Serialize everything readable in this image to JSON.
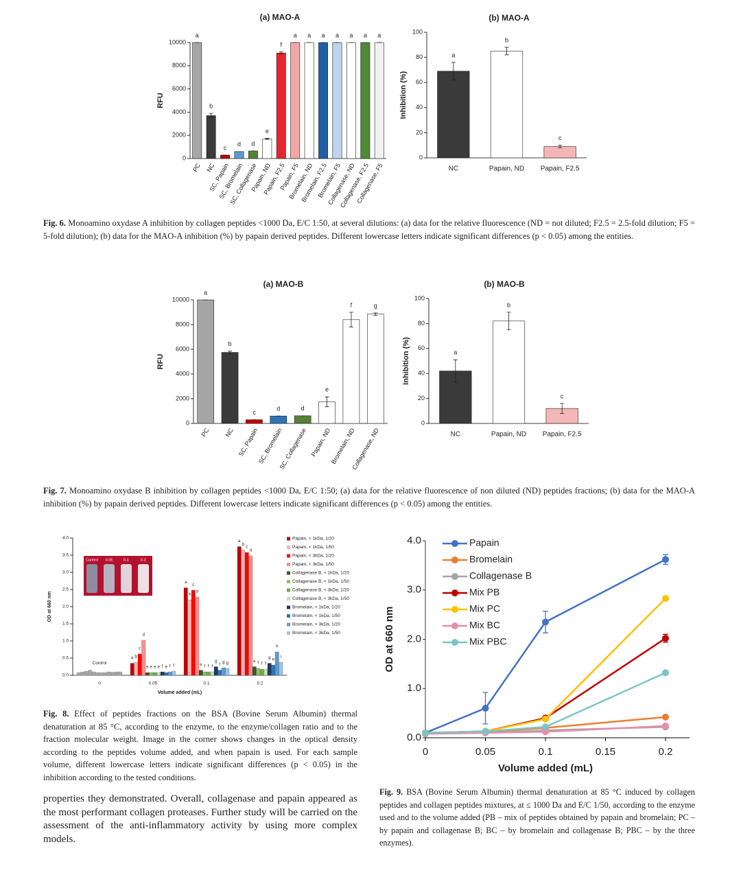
{
  "chart_data": [
    {
      "type": "bar",
      "title": "(a) MAO-A",
      "y_label": "RFU",
      "categories": [
        "PC",
        "NC",
        "SC, Papain",
        "SC, Bromelain",
        "SC, Collagenase",
        "Papain, ND",
        "Papain, F2.5",
        "Papain, F5",
        "Bromelain, ND",
        "Bromelain, F2.5",
        "Bromelain, F5",
        "Collagenase, ND",
        "Collagenase, F2.5",
        "Collagenase, F5"
      ],
      "values": [
        10000,
        3700,
        300,
        600,
        650,
        1700,
        9100,
        10000,
        10000,
        10000,
        10000,
        10000,
        10000,
        10000
      ],
      "errors": [
        0,
        200,
        0,
        0,
        0,
        50,
        100,
        0,
        0,
        0,
        0,
        0,
        0,
        0
      ],
      "letters": [
        "a",
        "b",
        "c",
        "d",
        "d",
        "e",
        "f",
        "a",
        "a",
        "a",
        "a",
        "a",
        "a",
        "a"
      ],
      "colors": [
        "#a6a6a6",
        "#3a3a3a",
        "#c00000",
        "#5b9bd5",
        "#548235",
        "#ffffff",
        "#e8252b",
        "#f4a6a6",
        "#ffffff",
        "#1f5fa8",
        "#bcd4ec",
        "#ffffff",
        "#4e8a32",
        "#f2f2f2"
      ],
      "ylim": [
        0,
        10000
      ],
      "yticks": [
        0,
        2000,
        4000,
        6000,
        8000,
        10000
      ]
    },
    {
      "type": "bar",
      "title": "(b) MAO-A",
      "y_label": "Inhibition (%)",
      "categories": [
        "NC",
        "Papain, ND",
        "Papain, F2.5"
      ],
      "values": [
        69,
        85,
        9
      ],
      "errors": [
        7,
        3,
        1
      ],
      "letters": [
        "a",
        "b",
        "c"
      ],
      "colors": [
        "#3a3a3a",
        "#ffffff",
        "#f4b6b6"
      ],
      "ylim": [
        0,
        100
      ],
      "yticks": [
        0,
        20,
        40,
        60,
        80,
        100
      ]
    },
    {
      "type": "bar",
      "title": "(a) MAO-B",
      "y_label": "RFU",
      "categories": [
        "PC",
        "NC",
        "SC, Papain",
        "SC, Bromelain",
        "SC, Collagenase",
        "Papain, ND",
        "Bromelain, ND",
        "Collagenase, ND"
      ],
      "values": [
        10000,
        5750,
        300,
        600,
        620,
        1750,
        8400,
        8850
      ],
      "errors": [
        0,
        100,
        0,
        0,
        0,
        400,
        600,
        100
      ],
      "letters": [
        "a",
        "b",
        "c",
        "d",
        "d",
        "e",
        "f",
        "g"
      ],
      "colors": [
        "#a6a6a6",
        "#3a3a3a",
        "#c00000",
        "#2e75b6",
        "#548235",
        "#ffffff",
        "#ffffff",
        "#ffffff"
      ],
      "ylim": [
        0,
        10000
      ],
      "yticks": [
        0,
        2000,
        4000,
        6000,
        8000,
        10000
      ]
    },
    {
      "type": "bar",
      "title": "(b) MAO-B",
      "y_label": "Inhibition (%)",
      "categories": [
        "NC",
        "Papain, ND",
        "Papain, F2.5"
      ],
      "values": [
        42,
        82,
        12
      ],
      "errors": [
        9,
        7,
        4
      ],
      "letters": [
        "a",
        "b",
        "c"
      ],
      "colors": [
        "#3a3a3a",
        "#ffffff",
        "#f4b6b6"
      ],
      "ylim": [
        0,
        100
      ],
      "yticks": [
        0,
        20,
        40,
        60,
        80,
        100
      ]
    },
    {
      "type": "grouped_bar",
      "x_label": "Volume added (mL)",
      "y_label": "OD at 660 nm",
      "categories": [
        "0",
        "0.05",
        "0.1",
        "0.2"
      ],
      "control": {
        "label": "Control",
        "color": "#a6a6a6",
        "values": [
          0.08,
          0.1,
          0.12,
          0.15,
          0.1,
          0.08,
          0.08,
          0.08,
          0.1,
          0.09,
          0.1,
          0.1
        ]
      },
      "inset_labels": [
        "Control",
        "0.05",
        "0.1",
        "0.2"
      ],
      "series": [
        {
          "name": "Papain, < 1kDa, 1/20",
          "color": "#c00000",
          "values": [
            null,
            0.35,
            2.55,
            3.75
          ],
          "letters": [
            null,
            "a",
            "a",
            "a"
          ]
        },
        {
          "name": "Papain, < 1kDa, 1/50",
          "color": "#f7b4b4",
          "values": [
            null,
            0.38,
            2.2,
            3.65
          ],
          "letters": [
            null,
            "b",
            "b",
            "b"
          ]
        },
        {
          "name": "Papain, < 3kDa, 1/20",
          "color": "#ff0000",
          "values": [
            null,
            0.62,
            2.48,
            3.58
          ],
          "letters": [
            null,
            "c",
            "c",
            "c"
          ]
        },
        {
          "name": "Papain, < 3kDa, 1/50",
          "color": "#ff8c8c",
          "values": [
            null,
            1.02,
            2.28,
            3.48
          ],
          "letters": [
            null,
            "d",
            "d",
            "d"
          ]
        },
        {
          "name": "Collagenase B, < 1kDa, 1/20",
          "color": "#375623",
          "values": [
            null,
            0.08,
            0.15,
            0.25
          ],
          "letters": [
            null,
            "e",
            "e",
            "e"
          ]
        },
        {
          "name": "Collagenase B, < 1kDa, 1/50",
          "color": "#8cbf6a",
          "values": [
            null,
            0.08,
            0.1,
            0.2
          ],
          "letters": [
            null,
            "e",
            "f",
            "f"
          ]
        },
        {
          "name": "Collagenase B, < 3kDa, 1/20",
          "color": "#70ad47",
          "values": [
            null,
            0.08,
            0.1,
            0.18
          ],
          "letters": [
            null,
            "e",
            "f",
            "f"
          ]
        },
        {
          "name": "Collagenase B, < 3kDa, 1/50",
          "color": "#c5e0b4",
          "values": [
            null,
            0.08,
            0.1,
            0.18
          ],
          "letters": [
            null,
            "e",
            "f",
            "f"
          ]
        },
        {
          "name": "Bromelain, < 1kDa, 1/20",
          "color": "#1f3864",
          "values": [
            null,
            0.1,
            0.25,
            0.35
          ],
          "letters": [
            null,
            "f",
            "g",
            "g"
          ]
        },
        {
          "name": "Bromelain, < 1kDa, 1/50",
          "color": "#2e75b6",
          "values": [
            null,
            0.08,
            0.15,
            0.3
          ],
          "letters": [
            null,
            "e",
            "f",
            "e"
          ]
        },
        {
          "name": "Bromelain, < 3kDa, 1/20",
          "color": "#5b9bd5",
          "values": [
            null,
            0.1,
            0.22,
            0.68
          ],
          "letters": [
            null,
            "f",
            "g",
            "h"
          ]
        },
        {
          "name": "Bromelain, < 3kDa, 1/50",
          "color": "#9dc3e6",
          "values": [
            null,
            0.12,
            0.2,
            0.38
          ],
          "letters": [
            null,
            "f",
            "g",
            "i"
          ]
        }
      ],
      "ylim": [
        0,
        4
      ],
      "yticks": [
        {
          "value": 0,
          "label": "0.0"
        },
        0.5,
        {
          "value": 1,
          "label": "1.0"
        },
        1.5,
        {
          "value": 2,
          "label": "2.0"
        },
        2.5,
        {
          "value": 3,
          "label": "3.0"
        },
        3.5,
        {
          "value": 4,
          "label": "4.0"
        }
      ]
    },
    {
      "type": "line",
      "x_label": "Volume added (mL)",
      "y_label": "OD at 660 nm",
      "legend": "upper left",
      "x": [
        0,
        0.05,
        0.1,
        0.2
      ],
      "series": [
        {
          "name": "Papain",
          "color": "#4472c4",
          "values": [
            0.1,
            0.6,
            2.35,
            3.62
          ],
          "errors": [
            0.02,
            0.32,
            0.22,
            0.1
          ]
        },
        {
          "name": "Bromelain",
          "color": "#ed7d31",
          "values": [
            0.1,
            0.12,
            0.2,
            0.42
          ]
        },
        {
          "name": "Collagenase B",
          "color": "#a5a5a5",
          "values": [
            0.08,
            0.1,
            0.15,
            0.22
          ]
        },
        {
          "name": "Mix PB",
          "color": "#c00000",
          "values": [
            0.1,
            0.13,
            0.4,
            2.02
          ],
          "errors": [
            0.02,
            0.02,
            0.03,
            0.08
          ]
        },
        {
          "name": "Mix PC",
          "color": "#ffc000",
          "values": [
            0.1,
            0.13,
            0.38,
            2.83
          ]
        },
        {
          "name": "Mix BC",
          "color": "#e68fac",
          "values": [
            0.08,
            0.1,
            0.12,
            0.24
          ]
        },
        {
          "name": "Mix PBC",
          "color": "#7cc5c5",
          "values": [
            0.1,
            0.13,
            0.22,
            1.32
          ]
        }
      ],
      "xlim": [
        0,
        0.22
      ],
      "xticks": [
        0,
        0.05,
        0.1,
        0.15,
        0.2
      ],
      "ylim": [
        0,
        4
      ],
      "yticks": [
        {
          "value": 0,
          "label": "0.0"
        },
        {
          "value": 1,
          "label": "1.0"
        },
        {
          "value": 2,
          "label": "2.0"
        },
        {
          "value": 3,
          "label": "3.0"
        },
        {
          "value": 4,
          "label": "4.0"
        }
      ]
    }
  ],
  "captions": [
    {
      "label": "Fig. 6.",
      "text": "Monoamino oxydase A inhibition by collagen peptides <1000 Da, E/C 1:50, at several dilutions: (a) data for the relative fluorescence (ND = not diluted; F2.5 = 2.5-fold dilution; F5 = 5-fold dilution); (b) data for the MAO-A inhibition (%) by papain derived peptides. Different lowercase letters indicate significant differences (p < 0.05) among the entities."
    },
    {
      "label": "Fig. 7.",
      "text": "Monoamino oxydase B inhibition by collagen peptides <1000 Da, E/C 1:50; (a) data for the relative fluorescence of non diluted (ND) peptides fractions; (b) data for the MAO-A inhibition (%) by papain derived peptides. Different lowercase letters indicate significant differences (p < 0.05) among the entities."
    },
    {
      "label": "Fig. 8.",
      "text": "Effect of peptides fractions on the BSA (Bovine Serum Albumin) thermal denaturation at 85 °C, according to the enzyme, to the enzyme/collagen ratio and to the fraction molecular weight. Image in the corner shows changes in the optical density according to the peptides volume added, and when papain is used. For each sample volume, different lowercase letters indicate significant differences (p < 0.05) in the inhibition according to the tested conditions."
    },
    {
      "label": "Fig. 9.",
      "text": "BSA (Bovine Serum Albumin) thermal denaturation at 85 °C induced by collagen peptides and collagen peptides mixtures, at ≤ 1000 Da and E/C 1/50, according to the enzyme used and to the volume added (PB – mix of peptides obtained by papain and bromelain; PC – by papain and collagenase B; BC – by bromelain and collagenase B; PBC – by the three enzymes)."
    }
  ],
  "body_text": "properties they demonstrated. Overall, collagenase and papain appeared as the most performant collagen proteases. Further study will be carried on the assessment of the anti-inflammatory activity by using more complex models."
}
